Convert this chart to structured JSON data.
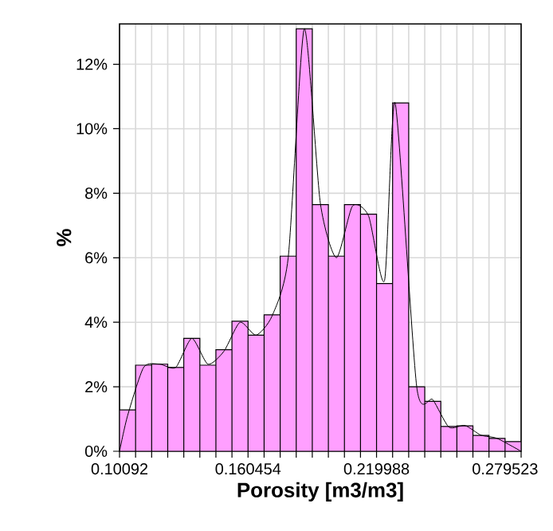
{
  "chart_data": {
    "type": "histogram",
    "xlabel": "Porosity [m3/m3]",
    "ylabel": "%",
    "series": [
      {
        "color": "#ff9fff",
        "bins": [
          0.10092,
          0.10836,
          0.1158,
          0.12325,
          0.13069,
          0.13813,
          0.14557,
          0.15301,
          0.160454,
          0.1679,
          0.17534,
          0.18278,
          0.19022,
          0.19767,
          0.20511,
          0.21255,
          0.219988,
          0.22743,
          0.23488,
          0.24232,
          0.24976,
          0.2572,
          0.26464,
          0.27208,
          0.279523,
          0.28697
        ],
        "values": [
          1.28,
          2.67,
          2.7,
          2.6,
          3.5,
          2.67,
          3.15,
          4.03,
          3.6,
          4.23,
          6.05,
          13.1,
          7.65,
          6.05,
          7.65,
          7.35,
          5.2,
          10.8,
          2.0,
          1.55,
          0.77,
          0.79,
          0.49,
          0.4,
          0.3
        ]
      },
      {
        "type": "line",
        "color": "#000000",
        "x": [
          0.10092,
          0.10464,
          0.11208,
          0.11953,
          0.12697,
          0.13441,
          0.14185,
          0.14929,
          0.15673,
          0.16418,
          0.17162,
          0.17906,
          0.1865,
          0.19394,
          0.20139,
          0.20883,
          0.21627,
          0.22371,
          0.2286,
          0.2386,
          0.24604,
          0.25348,
          0.26092,
          0.26836,
          0.2758,
          0.28697
        ],
        "values": [
          0,
          1.1,
          2.6,
          2.7,
          2.6,
          3.5,
          2.7,
          3.1,
          4.0,
          3.6,
          4.2,
          6.0,
          13.1,
          7.7,
          6.0,
          7.6,
          7.3,
          5.3,
          10.8,
          2.0,
          1.6,
          0.75,
          0.8,
          0.5,
          0.4,
          0
        ]
      }
    ],
    "xlim": [
      0.10092,
      0.28697
    ],
    "ylim": [
      0,
      13.25
    ],
    "xticks": [
      0.10092,
      {
        "value": 0.10836,
        "label": null
      },
      {
        "value": 0.1158,
        "label": null
      },
      {
        "value": 0.12325,
        "label": null
      },
      {
        "value": 0.13069,
        "label": null
      },
      {
        "value": 0.13813,
        "label": null
      },
      {
        "value": 0.14557,
        "label": null
      },
      {
        "value": 0.15301,
        "label": null
      },
      0.160454,
      {
        "value": 0.1679,
        "label": null
      },
      {
        "value": 0.17534,
        "label": null
      },
      {
        "value": 0.18278,
        "label": null
      },
      {
        "value": 0.19022,
        "label": null
      },
      {
        "value": 0.19767,
        "label": null
      },
      {
        "value": 0.20511,
        "label": null
      },
      {
        "value": 0.21255,
        "label": null
      },
      0.219988,
      {
        "value": 0.22743,
        "label": null
      },
      {
        "value": 0.23488,
        "label": null
      },
      {
        "value": 0.24232,
        "label": null
      },
      {
        "value": 0.24976,
        "label": null
      },
      {
        "value": 0.2572,
        "label": null
      },
      {
        "value": 0.26464,
        "label": null
      },
      {
        "value": 0.27208,
        "label": null
      },
      0.279523,
      {
        "value": 0.28697,
        "label": null
      }
    ],
    "yticks": [
      {
        "value": 0,
        "label": "0%"
      },
      {
        "value": 2,
        "label": "2%"
      },
      {
        "value": 4,
        "label": "4%"
      },
      {
        "value": 6,
        "label": "6%"
      },
      {
        "value": 8,
        "label": "8%"
      },
      {
        "value": 10,
        "label": "10%"
      },
      {
        "value": 12,
        "label": "12%"
      }
    ],
    "grid": true
  }
}
